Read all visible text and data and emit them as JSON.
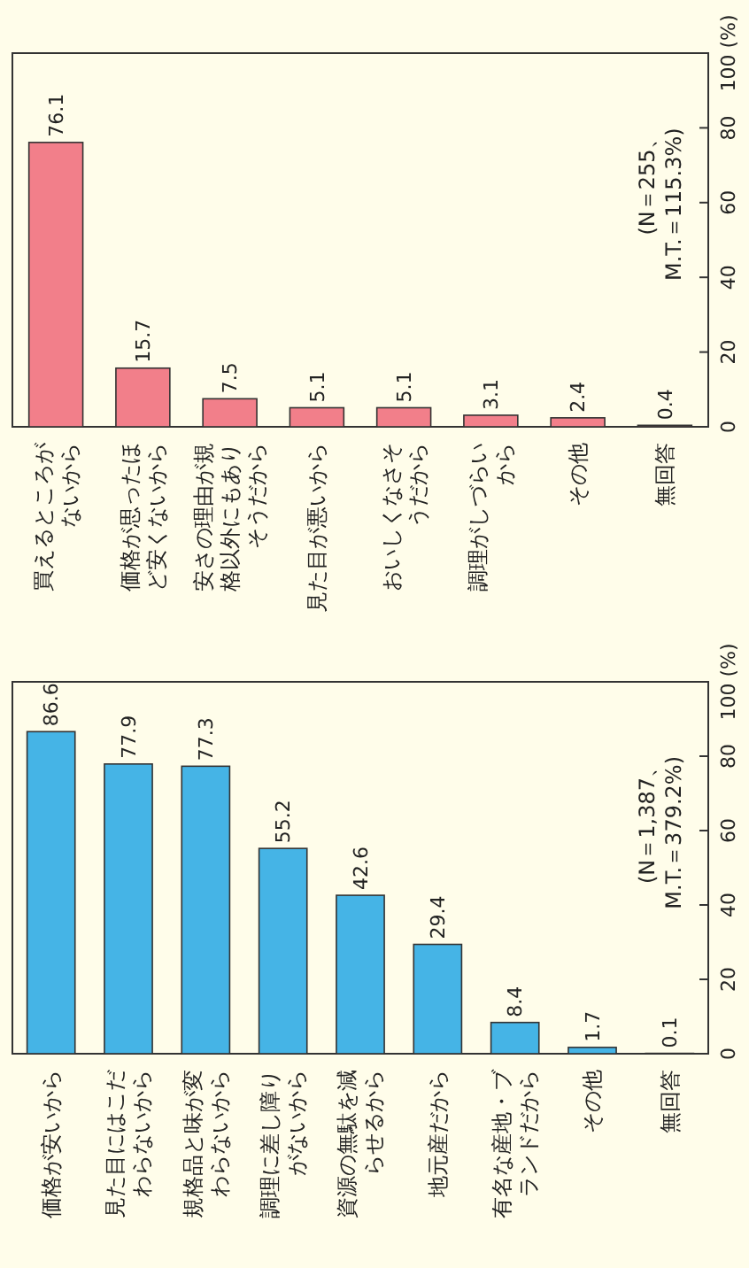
{
  "chart_data": [
    {
      "type": "bar",
      "categories": [
        "買えるところがないから",
        "価格が思ったほど安くないから",
        "安さの理由が規格以外にもありそうだから",
        "見た目が悪いから",
        "おいしくなさそうだから",
        "調理がしづらいから",
        "その他",
        "無回答"
      ],
      "values": [
        76.1,
        15.7,
        7.5,
        5.1,
        5.1,
        3.1,
        2.4,
        0.4
      ],
      "color": "#f27f8a",
      "ylim": [
        0,
        100
      ],
      "yticks": [
        0,
        20,
        40,
        60,
        80,
        {
          "value": 100,
          "label": "100 (%)"
        }
      ],
      "data_labels": true,
      "annotations": [
        "(N＝255、\nM.T.＝115.3%)"
      ]
    },
    {
      "type": "bar",
      "categories": [
        "価格が安いから",
        "見た目にはこだわらないから",
        "規格品と味が変わらないから",
        "調理に差し障りがないから",
        "資源の無駄を減らせるから",
        "地元産だから",
        "有名な産地・ブランドだから",
        "その他",
        "無回答"
      ],
      "values": [
        86.6,
        77.9,
        77.3,
        55.2,
        42.6,
        29.4,
        8.4,
        1.7,
        0.1
      ],
      "color": "#45b4e6",
      "ylim": [
        0,
        100
      ],
      "yticks": [
        0,
        20,
        40,
        60,
        80,
        {
          "value": 100,
          "label": "100 (%)"
        }
      ],
      "data_labels": true,
      "annotations": [
        "(N＝1,387、\nM.T.＝379.2%)"
      ]
    }
  ]
}
